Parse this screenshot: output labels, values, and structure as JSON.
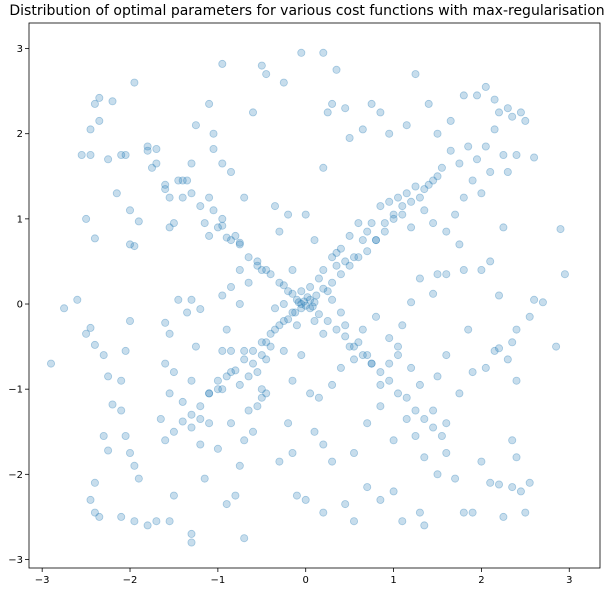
{
  "chart_data": {
    "type": "scatter",
    "title": "Distribution of optimal parameters for various cost functions with max-regularisation",
    "xlabel": "",
    "ylabel": "",
    "xlim": [
      -3.15,
      3.35
    ],
    "ylim": [
      -3.1,
      3.3
    ],
    "xticks": [
      -3,
      -2,
      -1,
      0,
      1,
      2,
      3
    ],
    "yticks": [
      -3,
      -2,
      -1,
      0,
      1,
      2,
      3
    ],
    "grid": false,
    "marker_color": "#1f77b4",
    "points": [
      [
        -2.9,
        -0.7
      ],
      [
        -2.75,
        -0.05
      ],
      [
        -2.6,
        0.05
      ],
      [
        -2.5,
        1.0
      ],
      [
        -2.45,
        2.05
      ],
      [
        -2.45,
        1.75
      ],
      [
        -2.4,
        0.77
      ],
      [
        -2.45,
        -0.28
      ],
      [
        -2.4,
        -0.48
      ],
      [
        -2.3,
        -0.6
      ],
      [
        -2.25,
        -0.85
      ],
      [
        -2.2,
        -1.18
      ],
      [
        -2.3,
        -1.55
      ],
      [
        -2.25,
        -1.72
      ],
      [
        -2.4,
        -2.1
      ],
      [
        -2.45,
        -2.3
      ],
      [
        -2.4,
        -2.45
      ],
      [
        -2.35,
        -2.5
      ],
      [
        -2.4,
        2.35
      ],
      [
        -2.35,
        2.42
      ],
      [
        -2.2,
        2.38
      ],
      [
        -2.15,
        1.3
      ],
      [
        -2.05,
        1.75
      ],
      [
        -2.0,
        1.1
      ],
      [
        -2.0,
        0.7
      ],
      [
        -1.95,
        0.68
      ],
      [
        -1.9,
        0.97
      ],
      [
        -1.8,
        1.85
      ],
      [
        -1.7,
        1.82
      ],
      [
        -1.6,
        1.35
      ],
      [
        -1.55,
        1.25
      ],
      [
        -1.55,
        0.9
      ],
      [
        -1.5,
        0.95
      ],
      [
        -2.0,
        -0.2
      ],
      [
        -2.05,
        -0.55
      ],
      [
        -2.1,
        -0.9
      ],
      [
        -2.1,
        -1.25
      ],
      [
        -2.05,
        -1.55
      ],
      [
        -2.0,
        -1.75
      ],
      [
        -1.95,
        -1.9
      ],
      [
        -1.9,
        -2.05
      ],
      [
        -2.1,
        -2.5
      ],
      [
        -1.95,
        -2.55
      ],
      [
        -1.8,
        -2.6
      ],
      [
        -1.7,
        -2.55
      ],
      [
        -1.55,
        -2.55
      ],
      [
        -1.5,
        -2.25
      ],
      [
        -1.6,
        -1.6
      ],
      [
        -1.65,
        -1.35
      ],
      [
        -1.55,
        -1.05
      ],
      [
        -1.5,
        -0.8
      ],
      [
        -1.6,
        -0.7
      ],
      [
        -1.55,
        -0.35
      ],
      [
        -1.6,
        -0.22
      ],
      [
        -1.2,
        -0.06
      ],
      [
        -1.3,
        0.05
      ],
      [
        -1.4,
        1.45
      ],
      [
        -1.35,
        1.45
      ],
      [
        -1.3,
        1.65
      ],
      [
        -1.25,
        2.1
      ],
      [
        -1.1,
        2.35
      ],
      [
        -1.05,
        2.0
      ],
      [
        -0.95,
        2.82
      ],
      [
        -1.05,
        1.82
      ],
      [
        -0.95,
        1.65
      ],
      [
        -0.85,
        1.55
      ],
      [
        -1.1,
        1.25
      ],
      [
        -1.05,
        1.1
      ],
      [
        -0.95,
        1.0
      ],
      [
        -0.85,
        0.75
      ],
      [
        -0.75,
        0.7
      ],
      [
        -0.65,
        0.55
      ],
      [
        -0.55,
        0.45
      ],
      [
        -0.5,
        0.4
      ],
      [
        -0.4,
        0.35
      ],
      [
        -0.3,
        0.25
      ],
      [
        -0.2,
        0.15
      ],
      [
        -0.1,
        0.05
      ],
      [
        -0.05,
        0.0
      ],
      [
        0.05,
        -0.05
      ],
      [
        0.1,
        0.02
      ],
      [
        -0.02,
        0.03
      ],
      [
        0.0,
        -0.02
      ],
      [
        0.05,
        0.05
      ],
      [
        -0.05,
        -0.05
      ],
      [
        0.02,
        0.08
      ],
      [
        -0.08,
        0.02
      ],
      [
        0.08,
        -0.03
      ],
      [
        -0.12,
        -0.1
      ],
      [
        0.12,
        0.1
      ],
      [
        -0.15,
        0.12
      ],
      [
        0.15,
        -0.12
      ],
      [
        0.2,
        0.18
      ],
      [
        -0.2,
        -0.18
      ],
      [
        0.25,
        -0.2
      ],
      [
        -0.25,
        0.22
      ],
      [
        0.3,
        0.25
      ],
      [
        -0.3,
        -0.25
      ],
      [
        0.35,
        -0.3
      ],
      [
        0.4,
        0.35
      ],
      [
        -0.4,
        -0.35
      ],
      [
        0.45,
        -0.38
      ],
      [
        -0.45,
        0.4
      ],
      [
        0.5,
        0.45
      ],
      [
        -0.5,
        -0.45
      ],
      [
        0.55,
        -0.5
      ],
      [
        -0.55,
        0.5
      ],
      [
        0.6,
        0.55
      ],
      [
        -0.6,
        -0.55
      ],
      [
        0.65,
        -0.6
      ],
      [
        0.7,
        0.62
      ],
      [
        -0.7,
        -0.65
      ],
      [
        0.75,
        -0.7
      ],
      [
        -0.75,
        0.72
      ],
      [
        0.8,
        0.75
      ],
      [
        -0.8,
        -0.78
      ],
      [
        0.85,
        -0.8
      ],
      [
        0.9,
        0.85
      ],
      [
        -0.9,
        -0.85
      ],
      [
        0.95,
        -0.9
      ],
      [
        -0.95,
        0.92
      ],
      [
        1.0,
        1.0
      ],
      [
        -1.0,
        -1.0
      ],
      [
        1.05,
        -1.05
      ],
      [
        1.1,
        1.05
      ],
      [
        -1.1,
        -1.05
      ],
      [
        1.15,
        -1.1
      ],
      [
        1.2,
        1.2
      ],
      [
        -1.2,
        -1.2
      ],
      [
        1.25,
        -1.25
      ],
      [
        1.3,
        1.25
      ],
      [
        -1.3,
        -1.3
      ],
      [
        1.35,
        -1.35
      ],
      [
        1.4,
        1.4
      ],
      [
        -1.4,
        -1.38
      ],
      [
        1.45,
        -1.45
      ],
      [
        1.5,
        1.5
      ],
      [
        -1.5,
        -1.5
      ],
      [
        1.55,
        -1.55
      ],
      [
        -0.35,
        1.15
      ],
      [
        -0.2,
        1.05
      ],
      [
        -0.3,
        0.85
      ],
      [
        -0.15,
        0.4
      ],
      [
        -0.25,
        0.0
      ],
      [
        -0.35,
        -0.05
      ],
      [
        -0.1,
        -0.25
      ],
      [
        -0.25,
        -0.55
      ],
      [
        -0.4,
        -0.5
      ],
      [
        -0.45,
        -0.65
      ],
      [
        -0.5,
        -1.1
      ],
      [
        -0.55,
        -1.2
      ],
      [
        -0.6,
        -1.5
      ],
      [
        -0.7,
        -1.6
      ],
      [
        -0.75,
        -1.9
      ],
      [
        -0.8,
        -2.25
      ],
      [
        -0.9,
        -2.35
      ],
      [
        -0.7,
        -2.75
      ],
      [
        -1.3,
        -2.8
      ],
      [
        -1.3,
        -2.7
      ],
      [
        -1.15,
        -2.05
      ],
      [
        -1.0,
        -1.7
      ],
      [
        -0.85,
        -1.4
      ],
      [
        -0.65,
        -1.25
      ],
      [
        -0.2,
        -1.4
      ],
      [
        -0.15,
        -1.75
      ],
      [
        -0.3,
        -1.85
      ],
      [
        -0.1,
        -2.25
      ],
      [
        0.0,
        -2.3
      ],
      [
        0.2,
        -2.45
      ],
      [
        0.45,
        -2.35
      ],
      [
        0.55,
        -2.55
      ],
      [
        0.7,
        -2.15
      ],
      [
        0.85,
        -2.3
      ],
      [
        1.0,
        -2.2
      ],
      [
        1.1,
        -2.55
      ],
      [
        1.3,
        -2.45
      ],
      [
        1.35,
        -2.6
      ],
      [
        1.5,
        -2.0
      ],
      [
        1.6,
        -1.75
      ],
      [
        1.7,
        -2.05
      ],
      [
        1.8,
        -2.45
      ],
      [
        1.9,
        -2.45
      ],
      [
        2.0,
        -1.85
      ],
      [
        2.1,
        -2.1
      ],
      [
        2.2,
        -2.12
      ],
      [
        2.25,
        -2.5
      ],
      [
        2.35,
        -2.15
      ],
      [
        2.45,
        -2.2
      ],
      [
        2.5,
        -2.45
      ],
      [
        2.55,
        -2.1
      ],
      [
        2.4,
        -1.8
      ],
      [
        2.35,
        -1.6
      ],
      [
        2.4,
        -0.9
      ],
      [
        2.3,
        -0.65
      ],
      [
        2.2,
        -0.52
      ],
      [
        2.35,
        -0.45
      ],
      [
        2.4,
        -0.3
      ],
      [
        2.55,
        -0.15
      ],
      [
        2.6,
        0.05
      ],
      [
        2.7,
        0.02
      ],
      [
        2.85,
        -0.5
      ],
      [
        2.95,
        0.35
      ],
      [
        2.9,
        0.88
      ],
      [
        2.6,
        1.72
      ],
      [
        2.5,
        2.15
      ],
      [
        2.45,
        2.25
      ],
      [
        2.4,
        1.75
      ],
      [
        2.3,
        1.55
      ],
      [
        2.25,
        0.9
      ],
      [
        2.1,
        0.5
      ],
      [
        2.0,
        0.4
      ],
      [
        2.2,
        0.1
      ],
      [
        1.8,
        0.4
      ],
      [
        1.75,
        0.7
      ],
      [
        1.6,
        0.35
      ],
      [
        1.5,
        0.35
      ],
      [
        1.45,
        0.12
      ],
      [
        1.3,
        0.3
      ],
      [
        1.2,
        0.02
      ],
      [
        1.1,
        -0.25
      ],
      [
        1.05,
        -0.5
      ],
      [
        0.95,
        -0.7
      ],
      [
        0.85,
        -0.95
      ],
      [
        0.75,
        -0.7
      ],
      [
        0.7,
        -0.6
      ],
      [
        0.6,
        -0.45
      ],
      [
        0.45,
        -0.25
      ],
      [
        0.4,
        -0.1
      ],
      [
        0.3,
        0.05
      ],
      [
        0.35,
        0.45
      ],
      [
        0.45,
        0.5
      ],
      [
        0.55,
        0.55
      ],
      [
        0.65,
        0.75
      ],
      [
        0.75,
        0.95
      ],
      [
        0.85,
        1.15
      ],
      [
        0.95,
        1.2
      ],
      [
        1.05,
        1.25
      ],
      [
        1.15,
        1.3
      ],
      [
        1.25,
        1.38
      ],
      [
        1.35,
        1.35
      ],
      [
        1.45,
        1.45
      ],
      [
        1.55,
        1.6
      ],
      [
        1.65,
        1.8
      ],
      [
        1.75,
        1.65
      ],
      [
        1.85,
        1.85
      ],
      [
        1.95,
        1.7
      ],
      [
        2.05,
        1.85
      ],
      [
        2.15,
        2.05
      ],
      [
        2.2,
        2.25
      ],
      [
        2.3,
        2.3
      ],
      [
        2.35,
        2.2
      ],
      [
        2.15,
        2.4
      ],
      [
        2.05,
        2.55
      ],
      [
        1.95,
        2.45
      ],
      [
        1.8,
        2.45
      ],
      [
        1.65,
        2.15
      ],
      [
        1.5,
        2.0
      ],
      [
        1.4,
        2.35
      ],
      [
        1.25,
        2.7
      ],
      [
        1.15,
        2.1
      ],
      [
        0.95,
        2.0
      ],
      [
        0.85,
        2.25
      ],
      [
        0.75,
        2.35
      ],
      [
        0.65,
        2.05
      ],
      [
        0.5,
        1.95
      ],
      [
        0.45,
        2.3
      ],
      [
        0.3,
        2.35
      ],
      [
        0.25,
        2.25
      ],
      [
        0.2,
        1.6
      ],
      [
        0.0,
        1.05
      ],
      [
        0.1,
        0.75
      ],
      [
        0.35,
        2.75
      ],
      [
        0.2,
        2.95
      ],
      [
        -0.05,
        2.95
      ],
      [
        -0.25,
        2.6
      ],
      [
        -0.45,
        2.7
      ],
      [
        -0.5,
        2.8
      ],
      [
        -0.6,
        2.25
      ],
      [
        -0.7,
        1.25
      ],
      [
        -0.65,
        0.25
      ],
      [
        -0.75,
        0.4
      ],
      [
        -0.85,
        0.2
      ],
      [
        -0.75,
        0.0
      ],
      [
        -0.95,
        0.1
      ],
      [
        -0.9,
        -0.3
      ],
      [
        -0.95,
        -0.55
      ],
      [
        -1.0,
        -0.9
      ],
      [
        -1.1,
        -1.4
      ],
      [
        -1.2,
        -1.65
      ],
      [
        -0.85,
        -0.8
      ],
      [
        -0.75,
        -0.95
      ],
      [
        -0.65,
        -0.85
      ],
      [
        -0.5,
        -1.0
      ],
      [
        -0.45,
        -1.05
      ],
      [
        0.1,
        -1.5
      ],
      [
        0.2,
        -1.65
      ],
      [
        0.3,
        -1.85
      ],
      [
        0.55,
        -1.75
      ],
      [
        0.7,
        -1.4
      ],
      [
        0.85,
        -1.2
      ],
      [
        1.0,
        -1.6
      ],
      [
        1.15,
        -1.35
      ],
      [
        1.25,
        -1.55
      ],
      [
        1.35,
        -1.8
      ],
      [
        1.45,
        -1.25
      ],
      [
        1.6,
        -1.4
      ],
      [
        1.75,
        -1.05
      ],
      [
        1.9,
        -0.8
      ],
      [
        2.05,
        -0.75
      ],
      [
        2.15,
        -0.55
      ],
      [
        1.85,
        -0.3
      ],
      [
        1.6,
        -0.6
      ],
      [
        1.5,
        -0.85
      ],
      [
        1.3,
        -0.95
      ],
      [
        1.2,
        -0.75
      ],
      [
        1.05,
        -0.6
      ],
      [
        0.95,
        -0.4
      ],
      [
        0.8,
        -0.15
      ],
      [
        0.65,
        -0.3
      ],
      [
        0.5,
        -0.5
      ],
      [
        0.55,
        -0.65
      ],
      [
        0.4,
        -0.75
      ],
      [
        0.3,
        -0.95
      ],
      [
        0.15,
        -1.1
      ],
      [
        -0.05,
        -0.6
      ],
      [
        -0.15,
        -0.9
      ],
      [
        0.05,
        -1.05
      ],
      [
        0.2,
        -0.35
      ],
      [
        0.1,
        -0.2
      ],
      [
        0.25,
        0.15
      ],
      [
        0.35,
        0.6
      ],
      [
        0.5,
        0.8
      ],
      [
        0.6,
        0.95
      ],
      [
        0.7,
        0.85
      ],
      [
        0.8,
        0.75
      ],
      [
        0.9,
        0.95
      ],
      [
        1.0,
        1.05
      ],
      [
        1.1,
        1.15
      ],
      [
        1.2,
        0.9
      ],
      [
        1.35,
        1.1
      ],
      [
        1.45,
        0.95
      ],
      [
        1.6,
        0.85
      ],
      [
        1.7,
        1.05
      ],
      [
        1.8,
        1.25
      ],
      [
        1.9,
        1.45
      ],
      [
        2.0,
        1.3
      ],
      [
        2.1,
        1.55
      ],
      [
        2.25,
        1.75
      ],
      [
        -2.5,
        -0.35
      ],
      [
        -2.55,
        1.75
      ],
      [
        -2.35,
        2.15
      ],
      [
        -2.25,
        1.7
      ],
      [
        -2.1,
        1.75
      ],
      [
        -1.95,
        2.6
      ],
      [
        -1.8,
        1.8
      ],
      [
        -1.75,
        1.6
      ],
      [
        -1.7,
        1.65
      ],
      [
        -1.6,
        1.4
      ],
      [
        -1.45,
        1.45
      ],
      [
        -1.4,
        1.25
      ],
      [
        -1.3,
        1.3
      ],
      [
        -1.2,
        1.15
      ],
      [
        -1.15,
        0.95
      ],
      [
        -1.1,
        0.8
      ],
      [
        -1.0,
        0.9
      ],
      [
        -0.9,
        0.78
      ],
      [
        -0.8,
        0.8
      ],
      [
        -1.45,
        0.05
      ],
      [
        -1.35,
        -0.1
      ],
      [
        -1.25,
        -0.5
      ],
      [
        -1.3,
        -0.9
      ],
      [
        -1.4,
        -1.15
      ],
      [
        -1.3,
        -1.45
      ],
      [
        -1.2,
        -1.35
      ],
      [
        -1.1,
        -1.05
      ],
      [
        -0.95,
        -1.0
      ],
      [
        -0.85,
        -0.55
      ],
      [
        -0.7,
        -0.55
      ],
      [
        -0.6,
        -0.7
      ],
      [
        -0.55,
        -0.8
      ],
      [
        -0.5,
        -0.6
      ],
      [
        -0.45,
        -0.45
      ],
      [
        -0.35,
        -0.3
      ],
      [
        -0.25,
        -0.2
      ],
      [
        -0.15,
        -0.1
      ],
      [
        -0.05,
        0.15
      ],
      [
        0.05,
        0.2
      ],
      [
        0.15,
        0.3
      ],
      [
        0.2,
        0.4
      ],
      [
        0.3,
        0.55
      ],
      [
        0.4,
        0.65
      ]
    ]
  }
}
